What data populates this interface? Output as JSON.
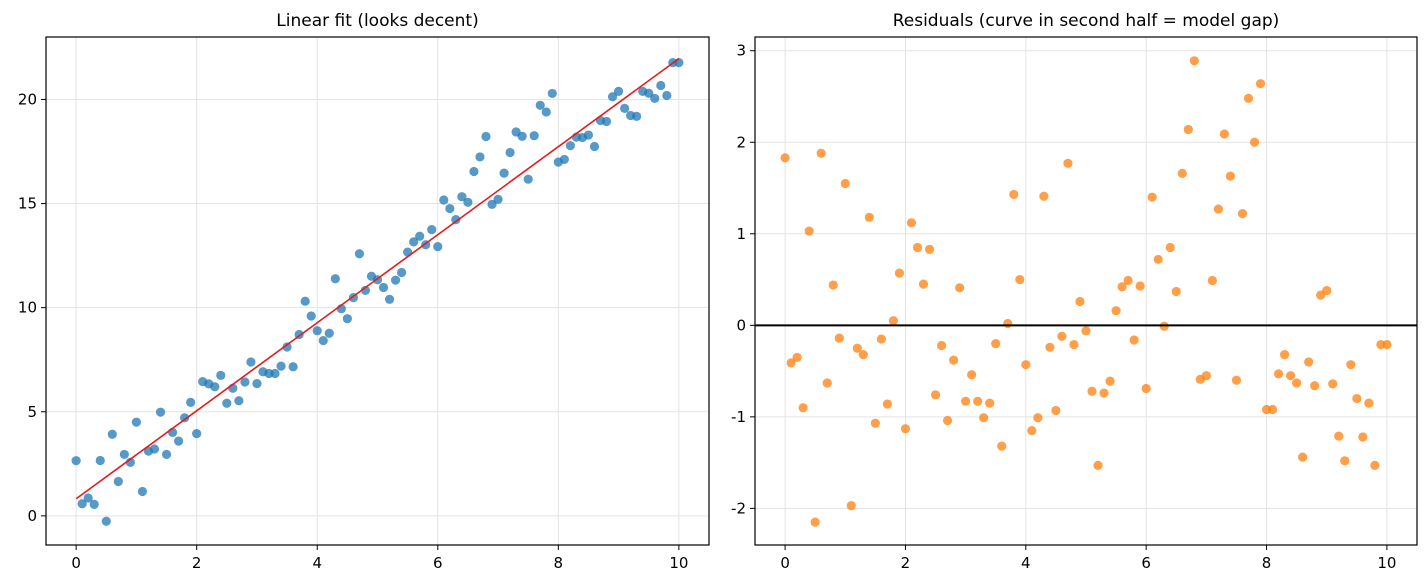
{
  "chart_data": [
    {
      "type": "scatter",
      "title": "Linear fit (looks decent)",
      "xlabel": "",
      "ylabel": "",
      "xlim": [
        -0.5,
        10.5
      ],
      "ylim": [
        -1.4,
        23.0
      ],
      "grid": true,
      "xticks": [
        0,
        2,
        4,
        6,
        8,
        10
      ],
      "yticks": [
        0,
        5,
        10,
        15,
        20
      ],
      "colors": {
        "points": "#1f77b4",
        "line": "#e41a1c"
      },
      "series": [
        {
          "kind": "scatter",
          "x": [
            0.0,
            0.1,
            0.2,
            0.3,
            0.4,
            0.5,
            0.6,
            0.7,
            0.8,
            0.9,
            1.0,
            1.1,
            1.2,
            1.3,
            1.4,
            1.5,
            1.6,
            1.7,
            1.8,
            1.9,
            2.0,
            2.1,
            2.2,
            2.3,
            2.4,
            2.5,
            2.6,
            2.7,
            2.8,
            2.9,
            3.0,
            3.1,
            3.2,
            3.3,
            3.4,
            3.5,
            3.6,
            3.7,
            3.8,
            3.9,
            4.0,
            4.1,
            4.2,
            4.3,
            4.4,
            4.5,
            4.6,
            4.7,
            4.8,
            4.9,
            5.0,
            5.1,
            5.2,
            5.3,
            5.4,
            5.5,
            5.6,
            5.7,
            5.8,
            5.9,
            6.0,
            6.1,
            6.2,
            6.3,
            6.4,
            6.5,
            6.6,
            6.7,
            6.8,
            6.9,
            7.0,
            7.1,
            7.2,
            7.3,
            7.4,
            7.5,
            7.6,
            7.7,
            7.8,
            7.9,
            8.0,
            8.1,
            8.2,
            8.3,
            8.4,
            8.5,
            8.6,
            8.7,
            8.8,
            8.9,
            9.0,
            9.1,
            9.2,
            9.3,
            9.4,
            9.5,
            9.6,
            9.7,
            9.8,
            9.9,
            10.0
          ],
          "y": [
            2.65,
            0.58,
            0.86,
            0.55,
            2.66,
            -0.26,
            3.92,
            1.65,
            2.95,
            2.57,
            4.5,
            1.17,
            3.11,
            3.21,
            4.98,
            2.95,
            4.01,
            3.59,
            4.71,
            5.45,
            3.95,
            6.45,
            6.34,
            6.2,
            6.75,
            5.41,
            6.13,
            5.53,
            6.43,
            7.39,
            6.35,
            6.92,
            6.84,
            6.84,
            7.19,
            8.11,
            7.16,
            8.71,
            10.31,
            9.6,
            8.89,
            8.42,
            8.77,
            11.39,
            9.95,
            9.47,
            10.48,
            12.59,
            10.83,
            11.51,
            11.34,
            10.97,
            10.4,
            11.32,
            11.69,
            12.67,
            13.16,
            13.43,
            13.02,
            13.75,
            12.93,
            15.17,
            14.76,
            14.23,
            15.33,
            15.06,
            16.54,
            17.24,
            18.22,
            14.96,
            15.2,
            16.46,
            17.45,
            18.44,
            18.23,
            16.17,
            18.26,
            19.72,
            19.4,
            20.29,
            16.99,
            17.12,
            17.78,
            18.19,
            18.17,
            18.29,
            17.74,
            18.99,
            18.94,
            20.13,
            20.39,
            19.57,
            19.23,
            19.19,
            20.39,
            20.3,
            20.05,
            20.67,
            20.19,
            21.77,
            21.77
          ]
        },
        {
          "kind": "line",
          "x": [
            0,
            10
          ],
          "y": [
            0.82,
            21.96
          ]
        }
      ]
    },
    {
      "type": "scatter",
      "title": "Residuals (curve in second half = model gap)",
      "xlabel": "",
      "ylabel": "",
      "xlim": [
        -0.5,
        10.5
      ],
      "ylim": [
        -2.4,
        3.15
      ],
      "grid": true,
      "xticks": [
        0,
        2,
        4,
        6,
        8,
        10
      ],
      "yticks": [
        -2,
        -1,
        0,
        1,
        2,
        3
      ],
      "colors": {
        "points": "#ff7f0e",
        "line": "#000000"
      },
      "series": [
        {
          "kind": "scatter",
          "x": [
            0.0,
            0.1,
            0.2,
            0.3,
            0.4,
            0.5,
            0.6,
            0.7,
            0.8,
            0.9,
            1.0,
            1.1,
            1.2,
            1.3,
            1.4,
            1.5,
            1.6,
            1.7,
            1.8,
            1.9,
            2.0,
            2.1,
            2.2,
            2.3,
            2.4,
            2.5,
            2.6,
            2.7,
            2.8,
            2.9,
            3.0,
            3.1,
            3.2,
            3.3,
            3.4,
            3.5,
            3.6,
            3.7,
            3.8,
            3.9,
            4.0,
            4.1,
            4.2,
            4.3,
            4.4,
            4.5,
            4.6,
            4.7,
            4.8,
            4.9,
            5.0,
            5.1,
            5.2,
            5.3,
            5.4,
            5.5,
            5.6,
            5.7,
            5.8,
            5.9,
            6.0,
            6.1,
            6.2,
            6.3,
            6.4,
            6.5,
            6.6,
            6.7,
            6.8,
            6.9,
            7.0,
            7.1,
            7.2,
            7.3,
            7.4,
            7.5,
            7.6,
            7.7,
            7.8,
            7.9,
            8.0,
            8.1,
            8.2,
            8.3,
            8.4,
            8.5,
            8.6,
            8.7,
            8.8,
            8.9,
            9.0,
            9.1,
            9.2,
            9.3,
            9.4,
            9.5,
            9.6,
            9.7,
            9.8,
            9.9,
            10.0
          ],
          "y": [
            1.83,
            -0.41,
            -0.35,
            -0.9,
            1.03,
            -2.15,
            1.88,
            -0.63,
            0.44,
            -0.14,
            1.55,
            -1.97,
            -0.25,
            -0.32,
            1.18,
            -1.07,
            -0.15,
            -0.86,
            0.05,
            0.57,
            -1.13,
            1.12,
            0.85,
            0.45,
            0.83,
            -0.76,
            -0.22,
            -1.04,
            -0.38,
            0.41,
            -0.83,
            -0.54,
            -0.83,
            -1.01,
            -0.85,
            -0.2,
            -1.32,
            0.02,
            1.43,
            0.5,
            -0.43,
            -1.15,
            -1.01,
            1.41,
            -0.24,
            -0.93,
            -0.12,
            1.77,
            -0.21,
            0.26,
            -0.06,
            -0.72,
            -1.53,
            -0.74,
            -0.61,
            0.16,
            0.42,
            0.49,
            -0.16,
            0.43,
            -0.69,
            1.4,
            0.72,
            -0.01,
            0.85,
            0.37,
            1.66,
            2.14,
            2.89,
            -0.59,
            -0.55,
            0.49,
            1.27,
            2.09,
            1.63,
            -0.6,
            1.22,
            2.48,
            2.0,
            2.64,
            -0.92,
            -0.92,
            -0.53,
            -0.32,
            -0.55,
            -0.63,
            -1.44,
            -0.4,
            -0.66,
            0.33,
            0.38,
            -0.64,
            -1.21,
            -1.48,
            -0.43,
            -0.8,
            -1.22,
            -0.85,
            -1.53,
            -0.21,
            -0.21
          ]
        },
        {
          "kind": "hline",
          "y": 0
        }
      ]
    }
  ]
}
